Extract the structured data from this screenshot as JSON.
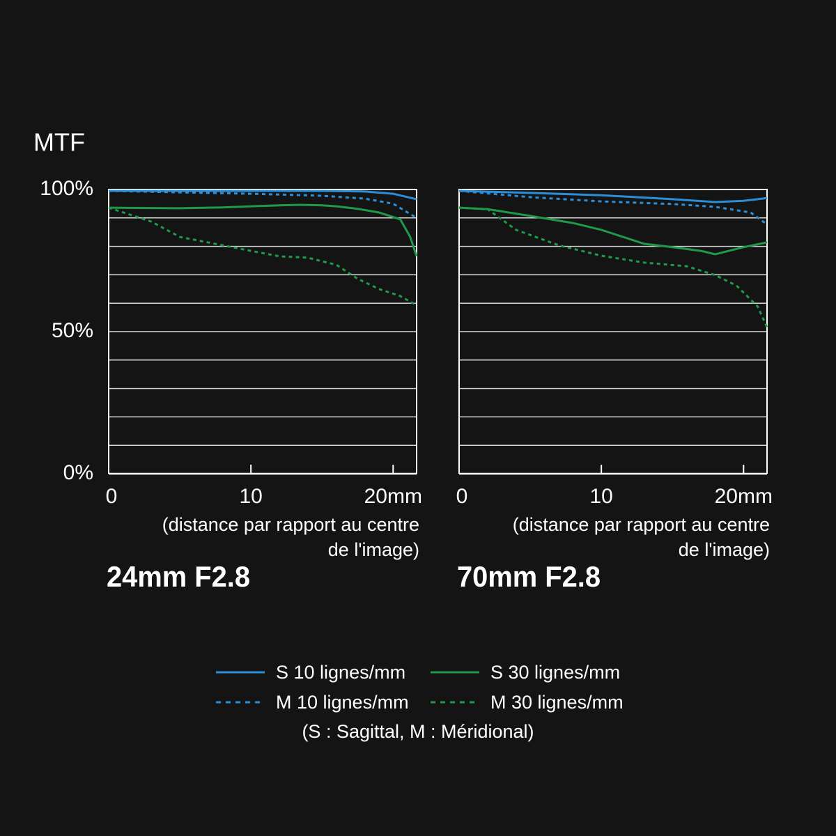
{
  "ylabel": "MTF",
  "charts": [
    {
      "type": "line",
      "title": "24mm F2.8",
      "xlabel_lines": [
        "(distance par rapport au centre",
        "de l'image)"
      ],
      "xlim": [
        0,
        21.65
      ],
      "ylim": [
        0,
        100
      ],
      "xticks": [
        0,
        10,
        {
          "value": 20,
          "label": "20mm"
        }
      ],
      "yticks": [
        {
          "value": 0,
          "label": "0%"
        },
        {
          "value": 50,
          "label": "50%"
        },
        {
          "value": 100,
          "label": "100%"
        }
      ],
      "ygrid": [
        10,
        20,
        30,
        40,
        50,
        60,
        70,
        80,
        90,
        100
      ],
      "series": [
        {
          "x": [
            0,
            5,
            10,
            15,
            18,
            20,
            21.65
          ],
          "values": [
            99.5,
            99.5,
            99.5,
            99.5,
            99.3,
            98.5,
            96.6
          ]
        },
        {
          "x": [
            0,
            2,
            5,
            8,
            10,
            12,
            13.5,
            15,
            16,
            17.5,
            19,
            20.5,
            21.2,
            21.65
          ],
          "values": [
            93.6,
            93.5,
            93.4,
            93.7,
            94.1,
            94.4,
            94.6,
            94.4,
            94.1,
            93.2,
            91.9,
            89.5,
            83.3,
            76.5
          ]
        },
        {
          "x": [
            0,
            5,
            10,
            15,
            18,
            20,
            21.65
          ],
          "values": [
            99.5,
            99,
            98.5,
            97.8,
            96.8,
            95,
            90
          ]
        },
        {
          "x": [
            0,
            3,
            5,
            8,
            10,
            12,
            14,
            16,
            17.5,
            19,
            20.5,
            21.65
          ],
          "values": [
            93.6,
            88.7,
            83.3,
            80.4,
            78.4,
            76.5,
            76,
            73.5,
            68.6,
            65,
            62.5,
            59.3
          ]
        }
      ]
    },
    {
      "type": "line",
      "title": "70mm F2.8",
      "xlabel_lines": [
        "(distance par rapport au centre",
        "de l'image)"
      ],
      "xlim": [
        0,
        21.65
      ],
      "ylim": [
        0,
        100
      ],
      "xticks": [
        0,
        10,
        {
          "value": 20,
          "label": "20mm"
        }
      ],
      "ygrid": [
        10,
        20,
        30,
        40,
        50,
        60,
        70,
        80,
        90,
        100
      ],
      "series": [
        {
          "x": [
            0,
            5,
            10,
            15,
            18,
            20,
            21,
            21.65
          ],
          "values": [
            99.5,
            98.8,
            98,
            96.6,
            95.6,
            96,
            96.6,
            97
          ]
        },
        {
          "x": [
            0,
            2,
            5,
            8,
            10,
            13,
            15,
            17,
            18,
            20,
            21.65
          ],
          "values": [
            93.6,
            93.1,
            90.7,
            88.2,
            85.8,
            80.9,
            79.7,
            78.4,
            77.2,
            79.7,
            81.4
          ]
        },
        {
          "x": [
            0,
            5,
            10,
            15,
            18,
            20.5,
            21.65
          ],
          "values": [
            99.5,
            97.3,
            95.8,
            94.9,
            93.9,
            91.9,
            87.7
          ]
        },
        {
          "x": [
            0,
            2,
            4,
            7,
            10,
            13,
            16,
            18,
            19.5,
            21,
            21.65
          ],
          "values": [
            93.6,
            93.1,
            85.8,
            80.4,
            76.7,
            74.3,
            73,
            69.9,
            66.2,
            58.8,
            51.5
          ]
        }
      ]
    }
  ],
  "legend": {
    "items": [
      {
        "name": "S 10 lignes/mm",
        "color": "#2a8fd8",
        "dashed": false
      },
      {
        "name": "S 30 lignes/mm",
        "color": "#1f9a4a",
        "dashed": false
      },
      {
        "name": "M 10 lignes/mm",
        "color": "#2a8fd8",
        "dashed": true
      },
      {
        "name": "M 30 lignes/mm",
        "color": "#1f9a4a",
        "dashed": true
      }
    ],
    "note": "(S : Sagittal, M : Méridional)"
  }
}
